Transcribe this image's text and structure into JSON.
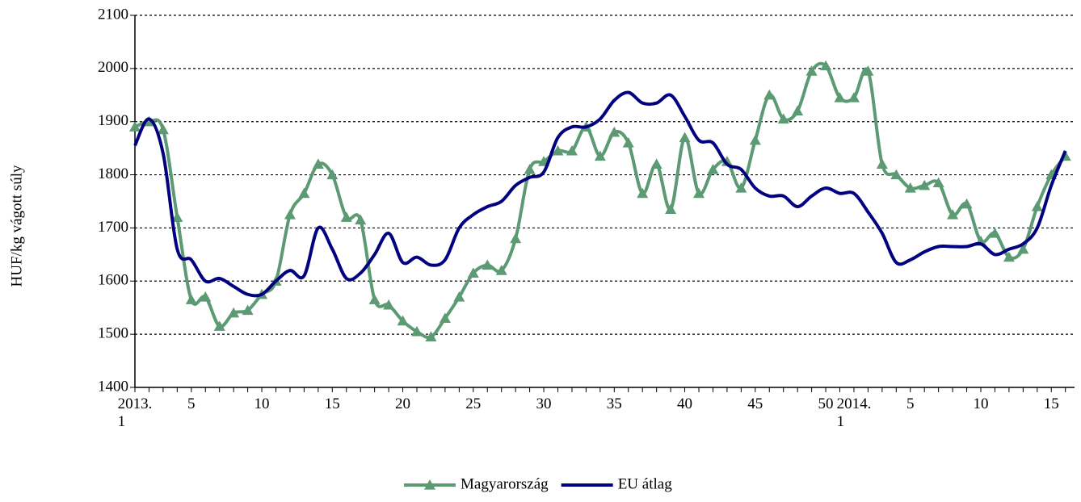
{
  "chart_data": {
    "type": "line",
    "y_label": "HUF/kg vágott súly",
    "categories": [
      "2013.\n1",
      null,
      null,
      null,
      "5",
      null,
      null,
      null,
      null,
      "10",
      null,
      null,
      null,
      null,
      "15",
      null,
      null,
      null,
      null,
      "20",
      null,
      null,
      null,
      null,
      "25",
      null,
      null,
      null,
      null,
      "30",
      null,
      null,
      null,
      null,
      "35",
      null,
      null,
      null,
      null,
      "40",
      null,
      null,
      null,
      null,
      "45",
      null,
      null,
      null,
      null,
      "50",
      null,
      "2014.\n1",
      null,
      null,
      null,
      "5",
      null,
      null,
      null,
      null,
      "10",
      null,
      null,
      null,
      null,
      "15",
      null
    ],
    "series": [
      {
        "name": "Magyarország",
        "color": "#5b9a72",
        "marker": "triangle",
        "values": [
          1890,
          1900,
          1885,
          1720,
          1565,
          1570,
          1515,
          1540,
          1545,
          1575,
          1600,
          1725,
          1765,
          1820,
          1800,
          1720,
          1715,
          1565,
          1555,
          1525,
          1505,
          1495,
          1530,
          1570,
          1615,
          1630,
          1620,
          1680,
          1810,
          1825,
          1845,
          1845,
          1890,
          1835,
          1880,
          1860,
          1765,
          1820,
          1735,
          1870,
          1765,
          1810,
          1825,
          1775,
          1865,
          1950,
          1905,
          1920,
          1995,
          2005,
          1945,
          1945,
          1995,
          1820,
          1800,
          1775,
          1780,
          1785,
          1725,
          1745,
          1675,
          1690,
          1645,
          1660,
          1740,
          1800,
          1835
        ]
      },
      {
        "name": "EU átlag",
        "color": "#000080",
        "marker": "none",
        "values": [
          1855,
          1905,
          1840,
          1660,
          1640,
          1600,
          1605,
          1590,
          1575,
          1575,
          1600,
          1620,
          1610,
          1700,
          1660,
          1605,
          1615,
          1650,
          1690,
          1635,
          1645,
          1630,
          1640,
          1700,
          1725,
          1740,
          1750,
          1780,
          1795,
          1805,
          1870,
          1890,
          1890,
          1905,
          1940,
          1955,
          1935,
          1935,
          1950,
          1910,
          1865,
          1860,
          1820,
          1810,
          1775,
          1760,
          1760,
          1740,
          1760,
          1775,
          1765,
          1765,
          1730,
          1690,
          1635,
          1640,
          1655,
          1665,
          1665,
          1665,
          1670,
          1650,
          1660,
          1670,
          1700,
          1780,
          1845
        ]
      }
    ],
    "ylim": [
      1400,
      2100
    ],
    "yticks": [
      1400,
      1500,
      1600,
      1700,
      1800,
      1900,
      2000,
      2100
    ],
    "grid": true,
    "legend": "bottom"
  }
}
